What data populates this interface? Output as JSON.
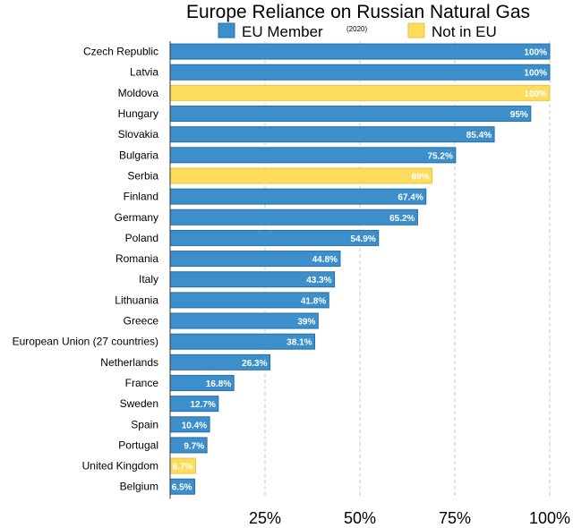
{
  "chart_data": {
    "type": "bar",
    "orientation": "horizontal",
    "title": "Europe Reliance on Russian Natural Gas",
    "subtitle": "(2020)",
    "legend": [
      {
        "name": "EU Member",
        "color": "#3d8fcc"
      },
      {
        "name": "Not in EU",
        "color": "#fddc5c"
      }
    ],
    "xlim": [
      0,
      100
    ],
    "ticks": [
      {
        "value": 25,
        "label": "25%"
      },
      {
        "value": 50,
        "label": "50%"
      },
      {
        "value": 75,
        "label": "75%"
      },
      {
        "value": 100,
        "label": "100%"
      }
    ],
    "grid": true,
    "bars": [
      {
        "category": "Czech Republic",
        "value": 100,
        "label": "100%",
        "group": "EU Member"
      },
      {
        "category": "Latvia",
        "value": 100,
        "label": "100%",
        "group": "EU Member"
      },
      {
        "category": "Moldova",
        "value": 100,
        "label": "100%",
        "group": "Not in EU"
      },
      {
        "category": "Hungary",
        "value": 95,
        "label": "95%",
        "group": "EU Member"
      },
      {
        "category": "Slovakia",
        "value": 85.4,
        "label": "85.4%",
        "group": "EU Member"
      },
      {
        "category": "Bulgaria",
        "value": 75.2,
        "label": "75.2%",
        "group": "EU Member"
      },
      {
        "category": "Serbia",
        "value": 69,
        "label": "69%",
        "group": "Not in EU"
      },
      {
        "category": "Finland",
        "value": 67.4,
        "label": "67.4%",
        "group": "EU Member"
      },
      {
        "category": "Germany",
        "value": 65.2,
        "label": "65.2%",
        "group": "EU Member"
      },
      {
        "category": "Poland",
        "value": 54.9,
        "label": "54.9%",
        "group": "EU Member"
      },
      {
        "category": "Romania",
        "value": 44.8,
        "label": "44.8%",
        "group": "EU Member"
      },
      {
        "category": "Italy",
        "value": 43.3,
        "label": "43.3%",
        "group": "EU Member"
      },
      {
        "category": "Lithuania",
        "value": 41.8,
        "label": "41.8%",
        "group": "EU Member"
      },
      {
        "category": "Greece",
        "value": 39,
        "label": "39%",
        "group": "EU Member"
      },
      {
        "category": "European Union (27 countries)",
        "value": 38.1,
        "label": "38.1%",
        "group": "EU Member"
      },
      {
        "category": "Netherlands",
        "value": 26.3,
        "label": "26.3%",
        "group": "EU Member"
      },
      {
        "category": "France",
        "value": 16.8,
        "label": "16.8%",
        "group": "EU Member"
      },
      {
        "category": "Sweden",
        "value": 12.7,
        "label": "12.7%",
        "group": "EU Member"
      },
      {
        "category": "Spain",
        "value": 10.4,
        "label": "10.4%",
        "group": "EU Member"
      },
      {
        "category": "Portugal",
        "value": 9.7,
        "label": "9.7%",
        "group": "EU Member"
      },
      {
        "category": "United Kingdom",
        "value": 6.7,
        "label": "6.7%",
        "group": "Not in EU"
      },
      {
        "category": "Belgium",
        "value": 6.5,
        "label": "6.5%",
        "group": "EU Member"
      }
    ]
  }
}
